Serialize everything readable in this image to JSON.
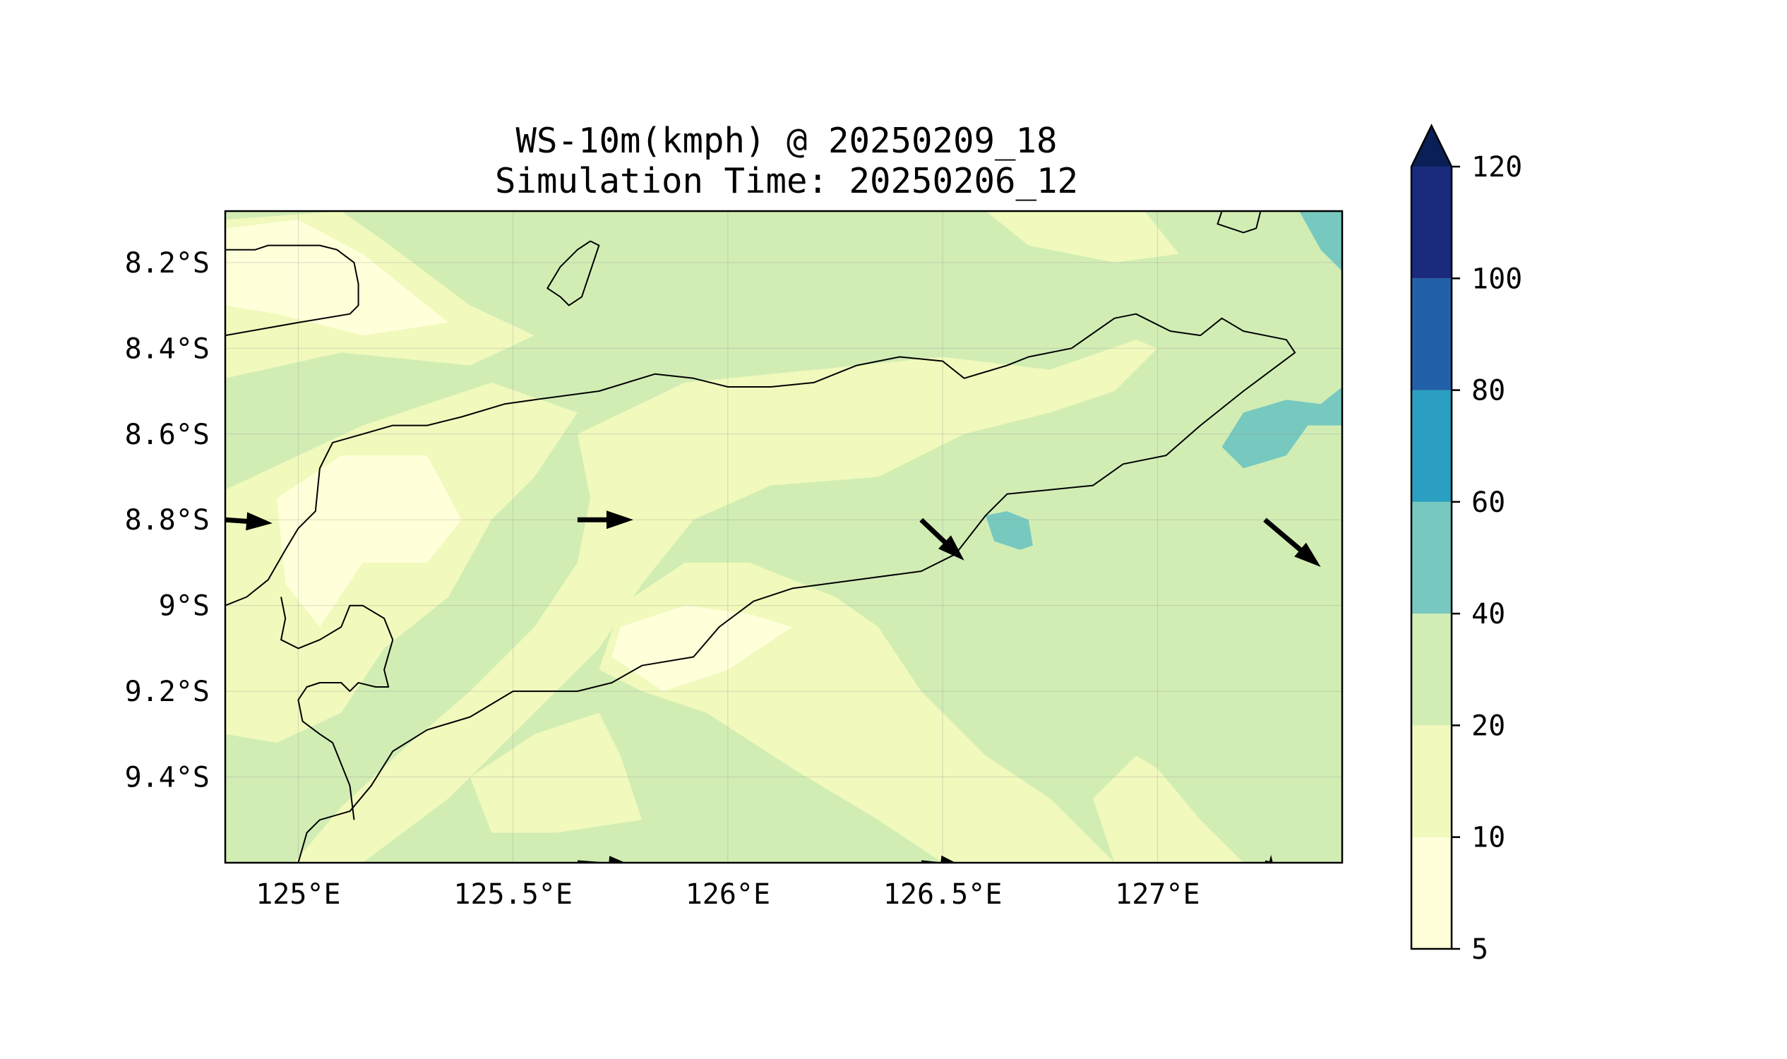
{
  "title": "WS-10m(kmph) @ 20250209_18",
  "subtitle": "Simulation Time: 20250206_12",
  "map": {
    "lon_range": [
      124.83,
      127.43
    ],
    "lat_range": [
      -9.6,
      -8.08
    ],
    "x_ticks": [
      {
        "value": 125.0,
        "label": "125°E"
      },
      {
        "value": 125.5,
        "label": "125.5°E"
      },
      {
        "value": 126.0,
        "label": "126°E"
      },
      {
        "value": 126.5,
        "label": "126.5°E"
      },
      {
        "value": 127.0,
        "label": "127°E"
      }
    ],
    "y_ticks": [
      {
        "value": -8.2,
        "label": "8.2°S"
      },
      {
        "value": -8.4,
        "label": "8.4°S"
      },
      {
        "value": -8.6,
        "label": "8.6°S"
      },
      {
        "value": -8.8,
        "label": "8.8°S"
      },
      {
        "value": -9.0,
        "label": "9°S"
      },
      {
        "value": -9.2,
        "label": "9.2°S"
      },
      {
        "value": -9.4,
        "label": "9.4°S"
      }
    ],
    "gridlines": true,
    "background_class": "20-40",
    "fill_regions": [
      {
        "level": "10-20",
        "points": [
          [
            124.83,
            -8.1
          ],
          [
            125.1,
            -8.08
          ],
          [
            125.2,
            -8.15
          ],
          [
            125.4,
            -8.3
          ],
          [
            125.55,
            -8.37
          ],
          [
            125.4,
            -8.44
          ],
          [
            125.1,
            -8.41
          ],
          [
            124.83,
            -8.47
          ]
        ]
      },
      {
        "level": "5-10",
        "points": [
          [
            124.83,
            -8.12
          ],
          [
            125.0,
            -8.1
          ],
          [
            125.15,
            -8.18
          ],
          [
            125.3,
            -8.3
          ],
          [
            125.35,
            -8.34
          ],
          [
            125.15,
            -8.37
          ],
          [
            124.95,
            -8.32
          ],
          [
            124.83,
            -8.3
          ]
        ]
      },
      {
        "level": "10-20",
        "points": [
          [
            126.6,
            -8.08
          ],
          [
            126.97,
            -8.08
          ],
          [
            127.05,
            -8.18
          ],
          [
            126.9,
            -8.2
          ],
          [
            126.7,
            -8.16
          ]
        ]
      },
      {
        "level": "10-20",
        "points": [
          [
            124.83,
            -8.73
          ],
          [
            125.15,
            -8.58
          ],
          [
            125.45,
            -8.48
          ],
          [
            125.65,
            -8.55
          ],
          [
            125.55,
            -8.7
          ],
          [
            125.45,
            -8.8
          ],
          [
            125.35,
            -8.98
          ],
          [
            125.2,
            -9.1
          ],
          [
            125.1,
            -9.25
          ],
          [
            124.95,
            -9.32
          ],
          [
            124.83,
            -9.3
          ]
        ]
      },
      {
        "level": "5-10",
        "points": [
          [
            124.95,
            -8.75
          ],
          [
            125.1,
            -8.65
          ],
          [
            125.3,
            -8.65
          ],
          [
            125.38,
            -8.8
          ],
          [
            125.3,
            -8.9
          ],
          [
            125.15,
            -8.9
          ],
          [
            125.05,
            -9.05
          ],
          [
            124.97,
            -8.95
          ]
        ]
      },
      {
        "level": "10-20",
        "points": [
          [
            125.65,
            -8.6
          ],
          [
            125.9,
            -8.48
          ],
          [
            126.2,
            -8.45
          ],
          [
            126.5,
            -8.42
          ],
          [
            126.75,
            -8.45
          ],
          [
            126.95,
            -8.38
          ],
          [
            127.0,
            -8.4
          ],
          [
            126.9,
            -8.5
          ],
          [
            126.75,
            -8.55
          ],
          [
            126.55,
            -8.6
          ],
          [
            126.35,
            -8.7
          ],
          [
            126.1,
            -8.72
          ],
          [
            125.92,
            -8.8
          ],
          [
            125.8,
            -8.95
          ],
          [
            125.7,
            -9.1
          ],
          [
            125.6,
            -9.2
          ],
          [
            125.5,
            -9.3
          ],
          [
            125.35,
            -9.45
          ],
          [
            125.15,
            -9.6
          ],
          [
            124.99,
            -9.6
          ],
          [
            125.1,
            -9.47
          ],
          [
            125.25,
            -9.33
          ],
          [
            125.4,
            -9.2
          ],
          [
            125.55,
            -9.05
          ],
          [
            125.65,
            -8.9
          ],
          [
            125.68,
            -8.75
          ]
        ]
      },
      {
        "level": "10-20",
        "points": [
          [
            125.9,
            -8.9
          ],
          [
            126.05,
            -8.9
          ],
          [
            126.25,
            -8.98
          ],
          [
            126.35,
            -9.05
          ],
          [
            126.45,
            -9.2
          ],
          [
            126.6,
            -9.35
          ],
          [
            126.75,
            -9.45
          ],
          [
            126.85,
            -9.55
          ],
          [
            126.9,
            -9.6
          ],
          [
            126.5,
            -9.6
          ],
          [
            126.35,
            -9.5
          ],
          [
            126.15,
            -9.38
          ],
          [
            125.95,
            -9.25
          ],
          [
            125.8,
            -9.2
          ],
          [
            125.7,
            -9.15
          ],
          [
            125.75,
            -9.0
          ]
        ]
      },
      {
        "level": "5-10",
        "points": [
          [
            125.75,
            -9.05
          ],
          [
            125.9,
            -9.0
          ],
          [
            126.05,
            -9.02
          ],
          [
            126.15,
            -9.05
          ],
          [
            126.0,
            -9.15
          ],
          [
            125.85,
            -9.2
          ],
          [
            125.73,
            -9.12
          ]
        ]
      },
      {
        "level": "10-20",
        "points": [
          [
            125.4,
            -9.4
          ],
          [
            125.55,
            -9.3
          ],
          [
            125.7,
            -9.25
          ],
          [
            125.75,
            -9.35
          ],
          [
            125.8,
            -9.5
          ],
          [
            125.6,
            -9.53
          ],
          [
            125.45,
            -9.53
          ]
        ]
      },
      {
        "level": "10-20",
        "points": [
          [
            126.85,
            -9.45
          ],
          [
            126.95,
            -9.35
          ],
          [
            127.0,
            -9.38
          ],
          [
            127.1,
            -9.5
          ],
          [
            127.2,
            -9.6
          ],
          [
            126.9,
            -9.6
          ]
        ]
      },
      {
        "level": "40-60",
        "points": [
          [
            127.33,
            -8.08
          ],
          [
            127.43,
            -8.08
          ],
          [
            127.43,
            -8.22
          ],
          [
            127.38,
            -8.17
          ]
        ]
      },
      {
        "level": "40-60",
        "points": [
          [
            127.15,
            -8.63
          ],
          [
            127.2,
            -8.55
          ],
          [
            127.3,
            -8.52
          ],
          [
            127.38,
            -8.53
          ],
          [
            127.43,
            -8.49
          ],
          [
            127.43,
            -8.58
          ],
          [
            127.35,
            -8.58
          ],
          [
            127.3,
            -8.65
          ],
          [
            127.2,
            -8.68
          ]
        ]
      },
      {
        "level": "40-60",
        "points": [
          [
            126.6,
            -8.79
          ],
          [
            126.65,
            -8.78
          ],
          [
            126.7,
            -8.8
          ],
          [
            126.71,
            -8.86
          ],
          [
            126.68,
            -8.87
          ],
          [
            126.62,
            -8.85
          ]
        ]
      }
    ],
    "coastlines": [
      [
        [
          124.83,
          -8.17
        ],
        [
          124.9,
          -8.17
        ],
        [
          124.93,
          -8.16
        ],
        [
          124.97,
          -8.16
        ],
        [
          125.01,
          -8.16
        ],
        [
          125.05,
          -8.16
        ],
        [
          125.09,
          -8.17
        ],
        [
          125.13,
          -8.2
        ],
        [
          125.14,
          -8.25
        ],
        [
          125.14,
          -8.3
        ],
        [
          125.12,
          -8.32
        ],
        [
          125.0,
          -8.34
        ],
        [
          124.83,
          -8.37
        ]
      ],
      [
        [
          125.68,
          -8.15
        ],
        [
          125.7,
          -8.16
        ],
        [
          125.68,
          -8.22
        ],
        [
          125.66,
          -8.28
        ],
        [
          125.63,
          -8.3
        ],
        [
          125.61,
          -8.28
        ],
        [
          125.58,
          -8.26
        ],
        [
          125.61,
          -8.21
        ],
        [
          125.65,
          -8.17
        ],
        [
          125.68,
          -8.15
        ]
      ],
      [
        [
          124.83,
          -9.0
        ],
        [
          124.88,
          -8.98
        ],
        [
          124.93,
          -8.94
        ],
        [
          124.97,
          -8.87
        ],
        [
          125.0,
          -8.82
        ],
        [
          125.04,
          -8.78
        ],
        [
          125.05,
          -8.68
        ],
        [
          125.08,
          -8.62
        ],
        [
          125.15,
          -8.6
        ],
        [
          125.22,
          -8.58
        ],
        [
          125.3,
          -8.58
        ],
        [
          125.38,
          -8.56
        ],
        [
          125.48,
          -8.53
        ],
        [
          125.55,
          -8.52
        ],
        [
          125.7,
          -8.5
        ],
        [
          125.83,
          -8.46
        ],
        [
          125.92,
          -8.47
        ],
        [
          126.0,
          -8.49
        ],
        [
          126.1,
          -8.49
        ],
        [
          126.2,
          -8.48
        ],
        [
          126.3,
          -8.44
        ],
        [
          126.4,
          -8.42
        ],
        [
          126.5,
          -8.43
        ],
        [
          126.55,
          -8.47
        ],
        [
          126.65,
          -8.44
        ],
        [
          126.7,
          -8.42
        ],
        [
          126.8,
          -8.4
        ],
        [
          126.9,
          -8.33
        ],
        [
          126.95,
          -8.32
        ],
        [
          127.03,
          -8.36
        ],
        [
          127.1,
          -8.37
        ],
        [
          127.15,
          -8.33
        ],
        [
          127.2,
          -8.36
        ],
        [
          127.3,
          -8.38
        ],
        [
          127.32,
          -8.41
        ],
        [
          127.2,
          -8.5
        ],
        [
          127.1,
          -8.58
        ],
        [
          127.02,
          -8.65
        ],
        [
          126.92,
          -8.67
        ],
        [
          126.85,
          -8.72
        ],
        [
          126.75,
          -8.73
        ],
        [
          126.65,
          -8.74
        ],
        [
          126.6,
          -8.79
        ],
        [
          126.53,
          -8.88
        ],
        [
          126.45,
          -8.92
        ],
        [
          126.3,
          -8.94
        ],
        [
          126.15,
          -8.96
        ],
        [
          126.06,
          -8.99
        ],
        [
          125.98,
          -9.05
        ],
        [
          125.92,
          -9.12
        ],
        [
          125.8,
          -9.14
        ],
        [
          125.73,
          -9.18
        ],
        [
          125.65,
          -9.2
        ],
        [
          125.5,
          -9.2
        ],
        [
          125.4,
          -9.26
        ],
        [
          125.3,
          -9.29
        ],
        [
          125.22,
          -9.34
        ],
        [
          125.17,
          -9.42
        ],
        [
          125.12,
          -9.48
        ],
        [
          125.05,
          -9.5
        ],
        [
          125.02,
          -9.53
        ],
        [
          125.0,
          -9.6
        ]
      ],
      [
        [
          124.96,
          -8.98
        ],
        [
          124.97,
          -9.03
        ],
        [
          124.96,
          -9.08
        ],
        [
          125.0,
          -9.1
        ],
        [
          125.05,
          -9.08
        ],
        [
          125.1,
          -9.05
        ],
        [
          125.12,
          -9.0
        ],
        [
          125.15,
          -9.0
        ],
        [
          125.2,
          -9.03
        ],
        [
          125.22,
          -9.08
        ],
        [
          125.2,
          -9.15
        ],
        [
          125.21,
          -9.19
        ],
        [
          125.18,
          -9.19
        ],
        [
          125.14,
          -9.18
        ],
        [
          125.12,
          -9.2
        ],
        [
          125.1,
          -9.18
        ],
        [
          125.05,
          -9.18
        ],
        [
          125.02,
          -9.19
        ],
        [
          125.0,
          -9.22
        ],
        [
          125.01,
          -9.27
        ],
        [
          125.05,
          -9.3
        ],
        [
          125.08,
          -9.32
        ],
        [
          125.1,
          -9.37
        ],
        [
          125.12,
          -9.42
        ],
        [
          125.13,
          -9.5
        ]
      ],
      [
        [
          127.15,
          -8.08
        ],
        [
          127.14,
          -8.11
        ],
        [
          127.2,
          -8.13
        ],
        [
          127.23,
          -8.12
        ],
        [
          127.24,
          -8.08
        ]
      ]
    ],
    "wind_vectors": [
      {
        "lon": 124.83,
        "lat": -8.8,
        "u": 0.11,
        "v": -0.008
      },
      {
        "lon": 125.65,
        "lat": -8.8,
        "u": 0.13,
        "v": 0.0
      },
      {
        "lon": 126.45,
        "lat": -8.8,
        "u": 0.1,
        "v": -0.095
      },
      {
        "lon": 127.25,
        "lat": -8.8,
        "u": 0.13,
        "v": -0.11
      },
      {
        "lon": 125.65,
        "lat": -9.6,
        "u": 0.135,
        "v": -0.01
      },
      {
        "lon": 126.45,
        "lat": -9.6,
        "u": 0.1,
        "v": -0.01
      },
      {
        "lon": 127.25,
        "lat": -9.6,
        "u": 0.02,
        "v": -0.005
      }
    ]
  },
  "colorbar": {
    "levels": [
      {
        "value": 5,
        "label": "5"
      },
      {
        "value": 10,
        "label": "10"
      },
      {
        "value": 20,
        "label": "20"
      },
      {
        "value": 40,
        "label": "40"
      },
      {
        "value": 60,
        "label": "60"
      },
      {
        "value": 80,
        "label": "80"
      },
      {
        "value": 100,
        "label": "100"
      },
      {
        "value": 120,
        "label": "120"
      }
    ],
    "bins": [
      {
        "range": "5-10",
        "color": "#ffffda"
      },
      {
        "range": "10-20",
        "color": "#f1f9bc"
      },
      {
        "range": "20-40",
        "color": "#d1edb4"
      },
      {
        "range": "40-60",
        "color": "#77c9bf"
      },
      {
        "range": "60-80",
        "color": "#2b9fc2"
      },
      {
        "range": "80-100",
        "color": "#2260a9"
      },
      {
        "range": "100-120",
        "color": "#1a2a7c"
      }
    ],
    "extend_color": "#0a1f56",
    "extend": "max"
  }
}
